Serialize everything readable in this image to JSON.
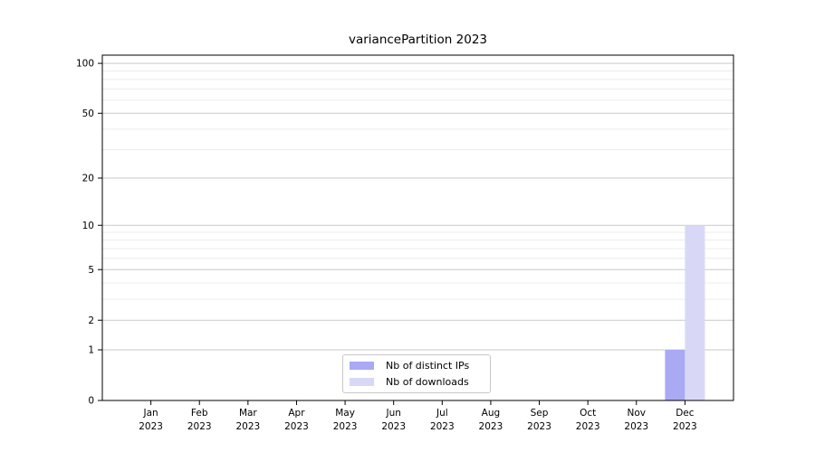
{
  "title": "variancePartition 2023",
  "chart_data": {
    "type": "bar",
    "title": "variancePartition 2023",
    "categories": [
      "Jan",
      "Feb",
      "Mar",
      "Apr",
      "May",
      "Jun",
      "Jul",
      "Aug",
      "Sep",
      "Oct",
      "Nov",
      "Dec"
    ],
    "year": "2023",
    "series": [
      {
        "name": "Nb of distinct IPs",
        "color": "#a9a9f4",
        "values": [
          0,
          0,
          0,
          0,
          0,
          0,
          0,
          0,
          0,
          0,
          0,
          1
        ]
      },
      {
        "name": "Nb of downloads",
        "color": "#d8d8f6",
        "values": [
          0,
          0,
          0,
          0,
          0,
          0,
          0,
          0,
          0,
          0,
          0,
          10
        ]
      }
    ],
    "yscale": "log1p",
    "ylim": [
      0,
      112
    ],
    "y_major_ticks": [
      0,
      1,
      2,
      5,
      10,
      20,
      50,
      100
    ],
    "y_minor_ticks": [
      3,
      4,
      6,
      7,
      8,
      9,
      30,
      40,
      60,
      70,
      80,
      90
    ],
    "grid": "horizontal",
    "legend_position": "lower center",
    "colors": {
      "major_grid": "#c9c9c9",
      "minor_grid": "#ececec",
      "axis": "#000000",
      "background": "#ffffff",
      "text": "#000000"
    }
  }
}
